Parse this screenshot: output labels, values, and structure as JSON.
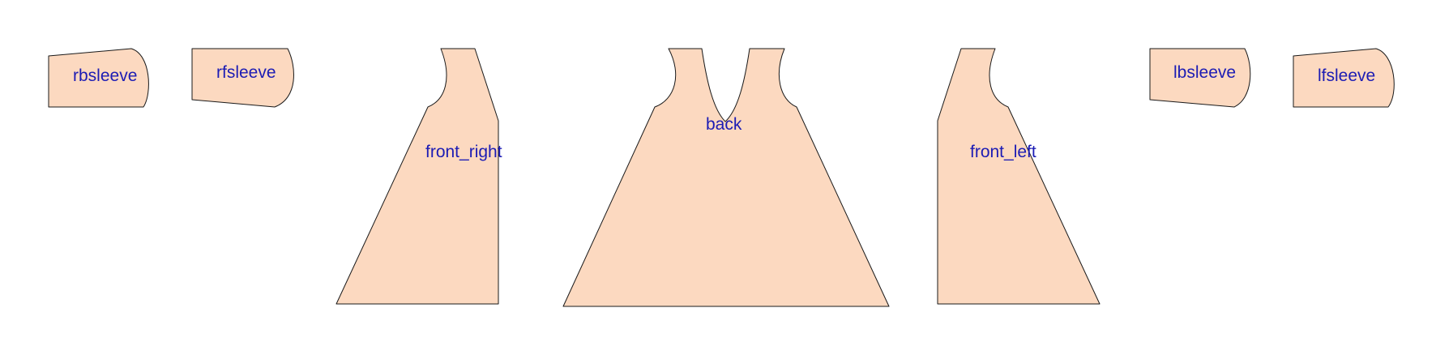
{
  "colors": {
    "panel_fill": "#fcd9c0",
    "panel_stroke": "#1a1a1a",
    "label_color": "#1c1cb4",
    "background": "#ffffff"
  },
  "panels": [
    {
      "id": "rbsleeve",
      "label": "rbsleeve"
    },
    {
      "id": "rfsleeve",
      "label": "rfsleeve"
    },
    {
      "id": "front_right",
      "label": "front_right"
    },
    {
      "id": "back",
      "label": "back"
    },
    {
      "id": "front_left",
      "label": "front_left"
    },
    {
      "id": "lbsleeve",
      "label": "lbsleeve"
    },
    {
      "id": "lfsleeve",
      "label": "lfsleeve"
    }
  ]
}
